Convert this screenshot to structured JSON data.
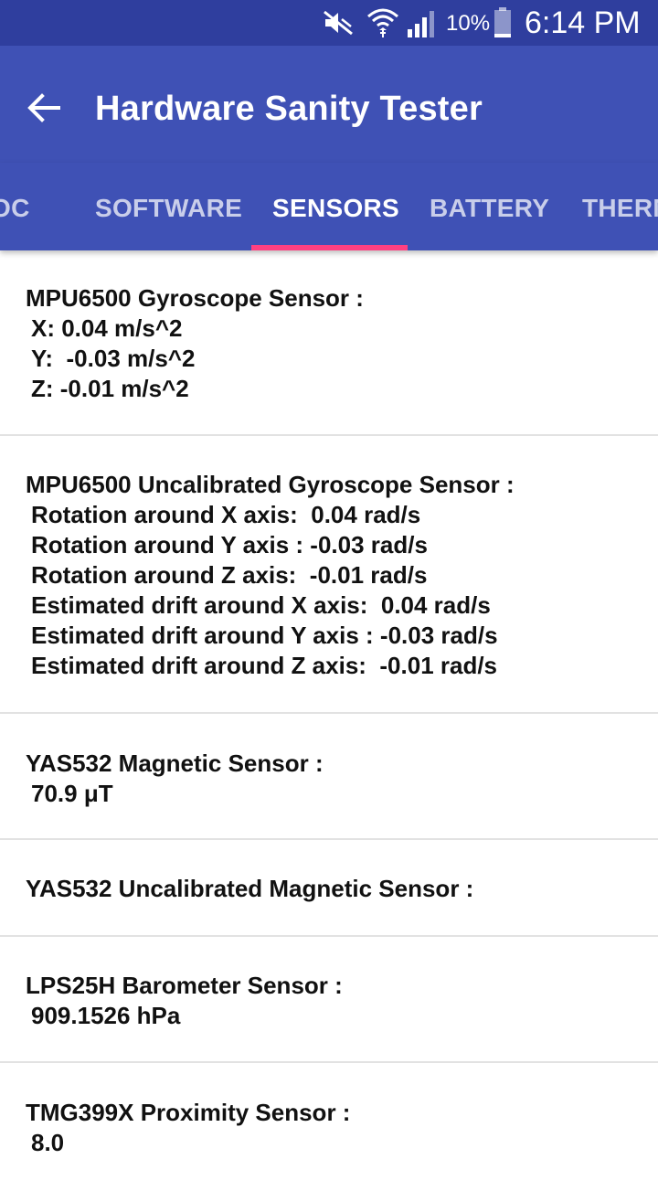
{
  "status_bar": {
    "battery_percent": "10%",
    "time": "6:14 PM",
    "icons": [
      "mute-icon",
      "wifi-icon",
      "signal-icon",
      "battery-icon"
    ]
  },
  "app_bar": {
    "title": "Hardware Sanity Tester",
    "back_icon": "back-arrow-icon"
  },
  "tabs": [
    {
      "label": "OC"
    },
    {
      "label": "SOFTWARE"
    },
    {
      "label": "SENSORS",
      "active": true
    },
    {
      "label": "BATTERY"
    },
    {
      "label": "THERM"
    }
  ],
  "colors": {
    "status_bar": "#2f3e9e",
    "primary": "#3f51b5",
    "indicator": "#ff4081"
  },
  "sensors": [
    {
      "name": "MPU6500 Gyroscope Sensor :",
      "lines": [
        "X: 0.04 m/s^2",
        "Y:  -0.03 m/s^2",
        "Z: -0.01 m/s^2"
      ]
    },
    {
      "name": "MPU6500 Uncalibrated Gyroscope Sensor :",
      "lines": [
        "Rotation around X axis:  0.04 rad/s",
        "Rotation around Y axis : -0.03 rad/s",
        "Rotation around Z axis:  -0.01 rad/s",
        "Estimated drift around X axis:  0.04 rad/s",
        "Estimated drift around Y axis : -0.03 rad/s",
        "Estimated drift around Z axis:  -0.01 rad/s"
      ]
    },
    {
      "name": "YAS532 Magnetic Sensor :",
      "lines": [
        "70.9 μT"
      ]
    },
    {
      "name": "YAS532 Uncalibrated Magnetic Sensor :",
      "lines": []
    },
    {
      "name": "LPS25H Barometer Sensor :",
      "lines": [
        "909.1526 hPa"
      ]
    },
    {
      "name": "TMG399X Proximity Sensor :",
      "lines": [
        "8.0"
      ]
    }
  ]
}
